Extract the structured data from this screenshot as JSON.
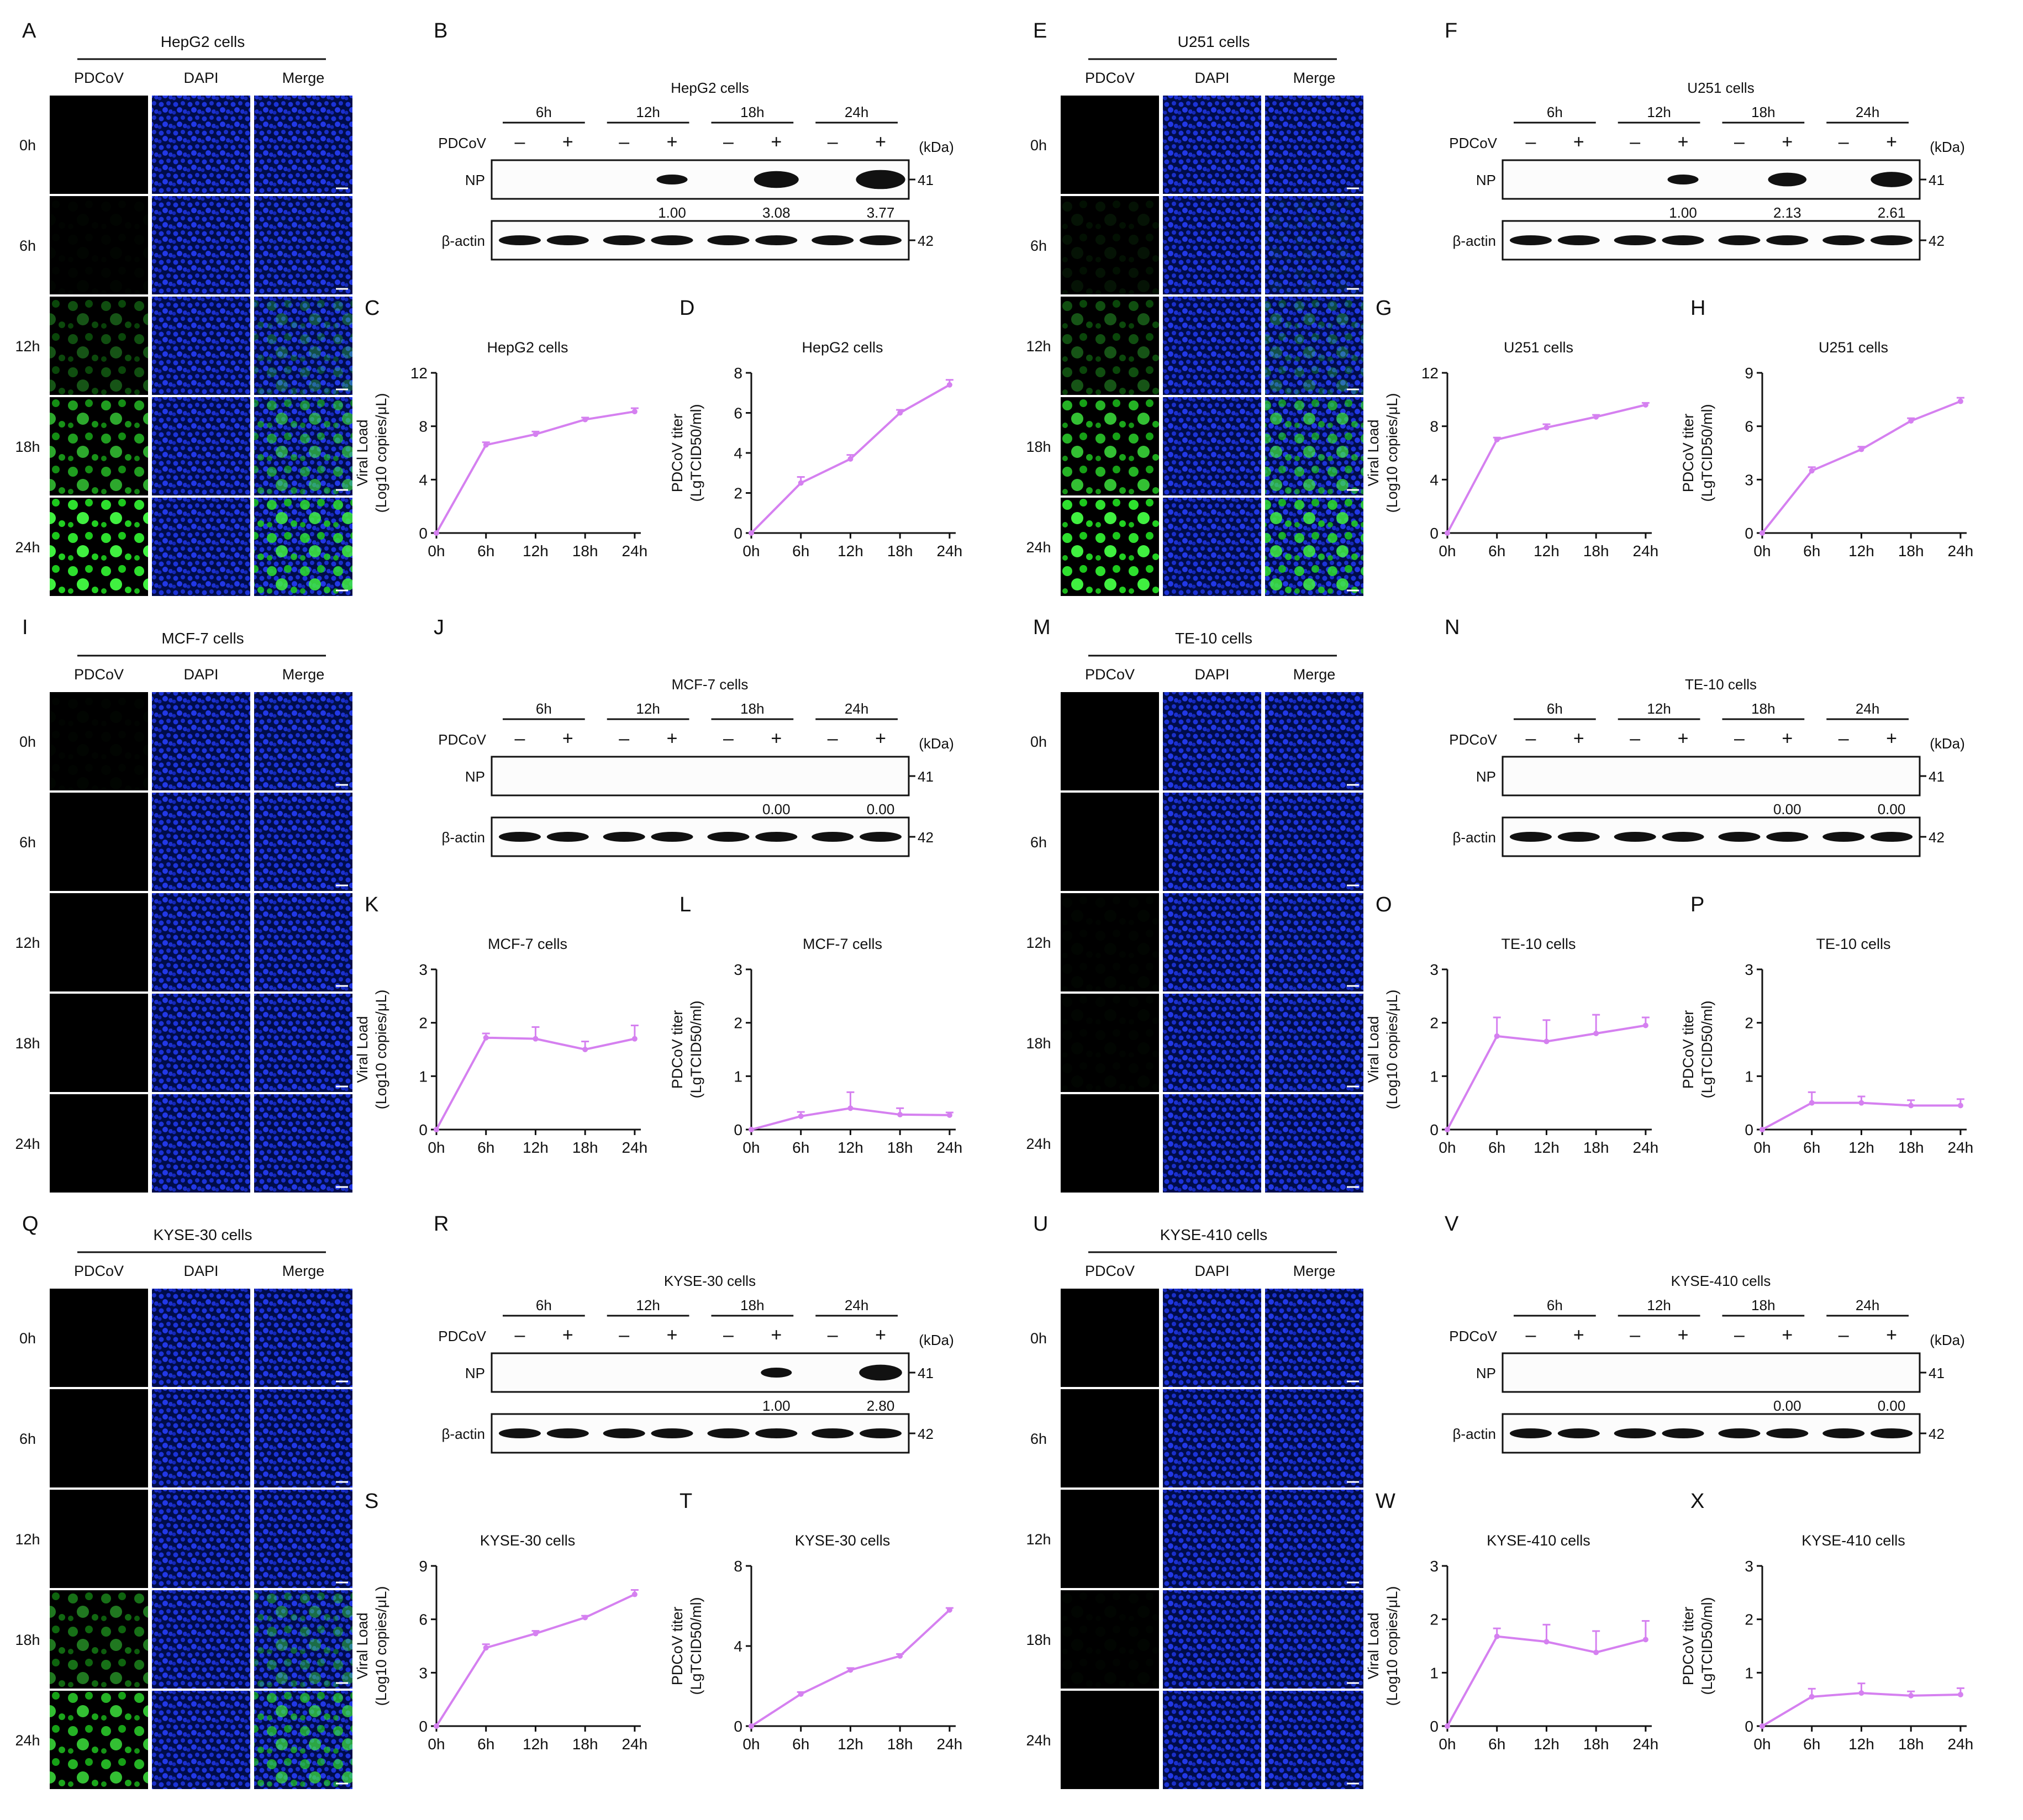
{
  "figure": {
    "time_rows": [
      "0h",
      "6h",
      "12h",
      "18h",
      "24h"
    ],
    "channel_labels": [
      "PDCoV",
      "DAPI",
      "Merge"
    ],
    "wb": {
      "time_groups": [
        "6h",
        "12h",
        "18h",
        "24h"
      ],
      "signs": [
        "–",
        "+"
      ],
      "virus_label": "PDCoV",
      "kda_label": "(kDa)",
      "row_np": "NP",
      "row_actin": "β-actin",
      "kda_np": "41",
      "kda_actin": "42"
    },
    "axis": {
      "viral_load_line1": "Viral Load",
      "viral_load_line2": "(Log10 copies/μL)",
      "titer_line1": "PDCoV titer",
      "titer_line2": "(LgTCID50/ml)"
    },
    "colors": {
      "line": "#d580f0",
      "band": "#111111",
      "dapi": "#0a1a9a",
      "pdcov_green": "#1bd01b"
    }
  },
  "cell_lines": [
    {
      "name": "HepG2 cells",
      "if": {
        "letter": "A",
        "green": [
          0,
          0.02,
          0.35,
          0.7,
          1.0
        ]
      },
      "wb": {
        "letter": "B",
        "np_quant": [
          "",
          "1.00",
          "3.08",
          "3.77"
        ]
      },
      "vl": {
        "letter": "C",
        "title": "HepG2 cells"
      },
      "ti": {
        "letter": "D",
        "title": "HepG2 cells"
      }
    },
    {
      "name": "U251 cells",
      "if": {
        "letter": "E",
        "green": [
          0,
          0.08,
          0.35,
          0.8,
          1.0
        ]
      },
      "wb": {
        "letter": "F",
        "np_quant": [
          "",
          "1.00",
          "2.13",
          "2.61"
        ]
      },
      "vl": {
        "letter": "G",
        "title": "U251 cells"
      },
      "ti": {
        "letter": "H",
        "title": "U251 cells"
      }
    },
    {
      "name": "MCF-7 cells",
      "if": {
        "letter": "I",
        "green": [
          0.02,
          0,
          0,
          0,
          0
        ]
      },
      "wb": {
        "letter": "J",
        "np_quant": [
          "",
          "",
          "0.00",
          "0.00"
        ]
      },
      "vl": {
        "letter": "K",
        "title": "MCF-7 cells"
      },
      "ti": {
        "letter": "L",
        "title": "MCF-7 cells"
      }
    },
    {
      "name": "TE-10 cells",
      "if": {
        "letter": "M",
        "green": [
          0,
          0,
          0.02,
          0.02,
          0
        ]
      },
      "wb": {
        "letter": "N",
        "np_quant": [
          "",
          "",
          "0.00",
          "0.00"
        ]
      },
      "vl": {
        "letter": "O",
        "title": "TE-10 cells"
      },
      "ti": {
        "letter": "P",
        "title": "TE-10 cells"
      }
    },
    {
      "name": "KYSE-30 cells",
      "if": {
        "letter": "Q",
        "green": [
          0,
          0,
          0,
          0.5,
          0.8
        ]
      },
      "wb": {
        "letter": "R",
        "np_quant": [
          "",
          "",
          "1.00",
          "2.80"
        ]
      },
      "vl": {
        "letter": "S",
        "title": "KYSE-30 cells"
      },
      "ti": {
        "letter": "T",
        "title": "KYSE-30 cells"
      }
    },
    {
      "name": "KYSE-410 cells",
      "if": {
        "letter": "U",
        "green": [
          0,
          0,
          0,
          0.02,
          0
        ]
      },
      "wb": {
        "letter": "V",
        "np_quant": [
          "",
          "",
          "0.00",
          "0.00"
        ]
      },
      "vl": {
        "letter": "W",
        "title": "KYSE-410 cells"
      },
      "ti": {
        "letter": "X",
        "title": "KYSE-410 cells"
      }
    }
  ],
  "chart_data": [
    {
      "panel": "C",
      "type": "line",
      "title": "HepG2 cells",
      "x": [
        "0h",
        "6h",
        "12h",
        "18h",
        "24h"
      ],
      "ylim": [
        0,
        12
      ],
      "yticks": [
        0,
        4,
        8,
        12
      ],
      "values": [
        0,
        6.6,
        7.4,
        8.5,
        9.1
      ],
      "error": [
        0,
        0.2,
        0.2,
        0.15,
        0.25
      ]
    },
    {
      "panel": "D",
      "type": "line",
      "title": "HepG2 cells",
      "x": [
        "0h",
        "6h",
        "12h",
        "18h",
        "24h"
      ],
      "ylim": [
        0,
        8
      ],
      "yticks": [
        0,
        2,
        4,
        6,
        8
      ],
      "values": [
        0,
        2.5,
        3.7,
        6.0,
        7.4
      ],
      "error": [
        0,
        0.3,
        0.2,
        0.15,
        0.25
      ]
    },
    {
      "panel": "G",
      "type": "line",
      "title": "U251 cells",
      "x": [
        "0h",
        "6h",
        "12h",
        "18h",
        "24h"
      ],
      "ylim": [
        0,
        12
      ],
      "yticks": [
        0,
        4,
        8,
        12
      ],
      "values": [
        0,
        7.0,
        7.9,
        8.7,
        9.6
      ],
      "error": [
        0,
        0.15,
        0.25,
        0.15,
        0.15
      ]
    },
    {
      "panel": "H",
      "type": "line",
      "title": "U251 cells",
      "x": [
        "0h",
        "6h",
        "12h",
        "18h",
        "24h"
      ],
      "ylim": [
        0,
        9
      ],
      "yticks": [
        0,
        3,
        6,
        9
      ],
      "values": [
        0,
        3.5,
        4.7,
        6.3,
        7.4
      ],
      "error": [
        0,
        0.2,
        0.15,
        0.15,
        0.2
      ]
    },
    {
      "panel": "K",
      "type": "line",
      "title": "MCF-7 cells",
      "x": [
        "0h",
        "6h",
        "12h",
        "18h",
        "24h"
      ],
      "ylim": [
        0,
        3
      ],
      "yticks": [
        0,
        1,
        2,
        3
      ],
      "values": [
        0,
        1.72,
        1.7,
        1.5,
        1.7
      ],
      "error": [
        0,
        0.08,
        0.22,
        0.15,
        0.25
      ]
    },
    {
      "panel": "L",
      "type": "line",
      "title": "MCF-7 cells",
      "x": [
        "0h",
        "6h",
        "12h",
        "18h",
        "24h"
      ],
      "ylim": [
        0,
        3
      ],
      "yticks": [
        0,
        1,
        2,
        3
      ],
      "values": [
        0,
        0.25,
        0.4,
        0.28,
        0.27
      ],
      "error": [
        0,
        0.08,
        0.3,
        0.12,
        0.05
      ]
    },
    {
      "panel": "O",
      "type": "line",
      "title": "TE-10 cells",
      "x": [
        "0h",
        "6h",
        "12h",
        "18h",
        "24h"
      ],
      "ylim": [
        0,
        3
      ],
      "yticks": [
        0,
        1,
        2,
        3
      ],
      "values": [
        0,
        1.75,
        1.65,
        1.8,
        1.95
      ],
      "error": [
        0,
        0.35,
        0.4,
        0.35,
        0.15
      ]
    },
    {
      "panel": "P",
      "type": "line",
      "title": "TE-10 cells",
      "x": [
        "0h",
        "6h",
        "12h",
        "18h",
        "24h"
      ],
      "ylim": [
        0,
        3
      ],
      "yticks": [
        0,
        1,
        2,
        3
      ],
      "values": [
        0,
        0.5,
        0.5,
        0.45,
        0.45
      ],
      "error": [
        0,
        0.2,
        0.12,
        0.1,
        0.12
      ]
    },
    {
      "panel": "S",
      "type": "line",
      "title": "KYSE-30 cells",
      "x": [
        "0h",
        "6h",
        "12h",
        "18h",
        "24h"
      ],
      "ylim": [
        0,
        9
      ],
      "yticks": [
        0,
        3,
        6,
        9
      ],
      "values": [
        0,
        4.4,
        5.2,
        6.1,
        7.4
      ],
      "error": [
        0,
        0.2,
        0.15,
        0.1,
        0.25
      ]
    },
    {
      "panel": "T",
      "type": "line",
      "title": "KYSE-30 cells",
      "x": [
        "0h",
        "6h",
        "12h",
        "18h",
        "24h"
      ],
      "ylim": [
        0,
        8
      ],
      "yticks": [
        0,
        4,
        8
      ],
      "values": [
        0,
        1.6,
        2.8,
        3.5,
        5.8
      ],
      "error": [
        0,
        0.1,
        0.1,
        0.1,
        0.1
      ]
    },
    {
      "panel": "W",
      "type": "line",
      "title": "KYSE-410 cells",
      "x": [
        "0h",
        "6h",
        "12h",
        "18h",
        "24h"
      ],
      "ylim": [
        0,
        3
      ],
      "yticks": [
        0,
        1,
        2,
        3
      ],
      "values": [
        0,
        1.68,
        1.58,
        1.38,
        1.62
      ],
      "error": [
        0,
        0.15,
        0.32,
        0.4,
        0.35
      ]
    },
    {
      "panel": "X",
      "type": "line",
      "title": "KYSE-410 cells",
      "x": [
        "0h",
        "6h",
        "12h",
        "18h",
        "24h"
      ],
      "ylim": [
        0,
        3
      ],
      "yticks": [
        0,
        1,
        2,
        3
      ],
      "values": [
        0,
        0.55,
        0.62,
        0.57,
        0.59
      ],
      "error": [
        0,
        0.15,
        0.18,
        0.08,
        0.12
      ]
    }
  ]
}
